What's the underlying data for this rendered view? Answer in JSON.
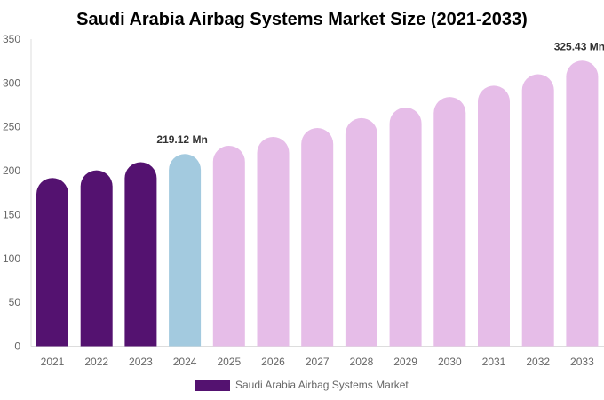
{
  "chart_data": {
    "type": "bar",
    "title": "Saudi Arabia Airbag Systems Market Size (2021-2033)",
    "categories": [
      "2021",
      "2022",
      "2023",
      "2024",
      "2025",
      "2026",
      "2027",
      "2028",
      "2029",
      "2030",
      "2031",
      "2032",
      "2033"
    ],
    "series": [
      {
        "name": "Saudi Arabia Airbag Systems Market",
        "values": [
          191.7,
          200.5,
          209.7,
          219.12,
          228.5,
          238.6,
          248.7,
          260.0,
          272.0,
          284.0,
          297.0,
          310.0,
          325.43
        ]
      }
    ],
    "data_labels": [
      {
        "index": 3,
        "text": "219.12 Mn"
      },
      {
        "index": 12,
        "text": "325.43 Mn"
      }
    ],
    "ylim": [
      0,
      350
    ],
    "yticks": [
      "0",
      "50",
      "100",
      "150",
      "200",
      "250",
      "300",
      "350"
    ],
    "grid": false,
    "legend": "bottom",
    "colors": {
      "historical": "#541270",
      "base_year": "#a3cadf",
      "forecast": "#e6bde8"
    }
  }
}
